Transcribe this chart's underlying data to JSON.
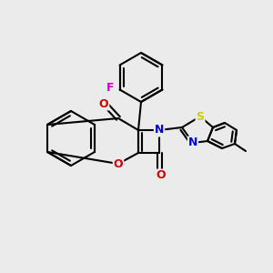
{
  "background_color": "#ebebeb",
  "atom_colors": {
    "C": "#000000",
    "N": "#0000cc",
    "O": "#cc0000",
    "S": "#cccc00",
    "F": "#cc00cc"
  },
  "bond_color": "#000000",
  "figsize": [
    3.0,
    3.0
  ],
  "dpi": 100
}
